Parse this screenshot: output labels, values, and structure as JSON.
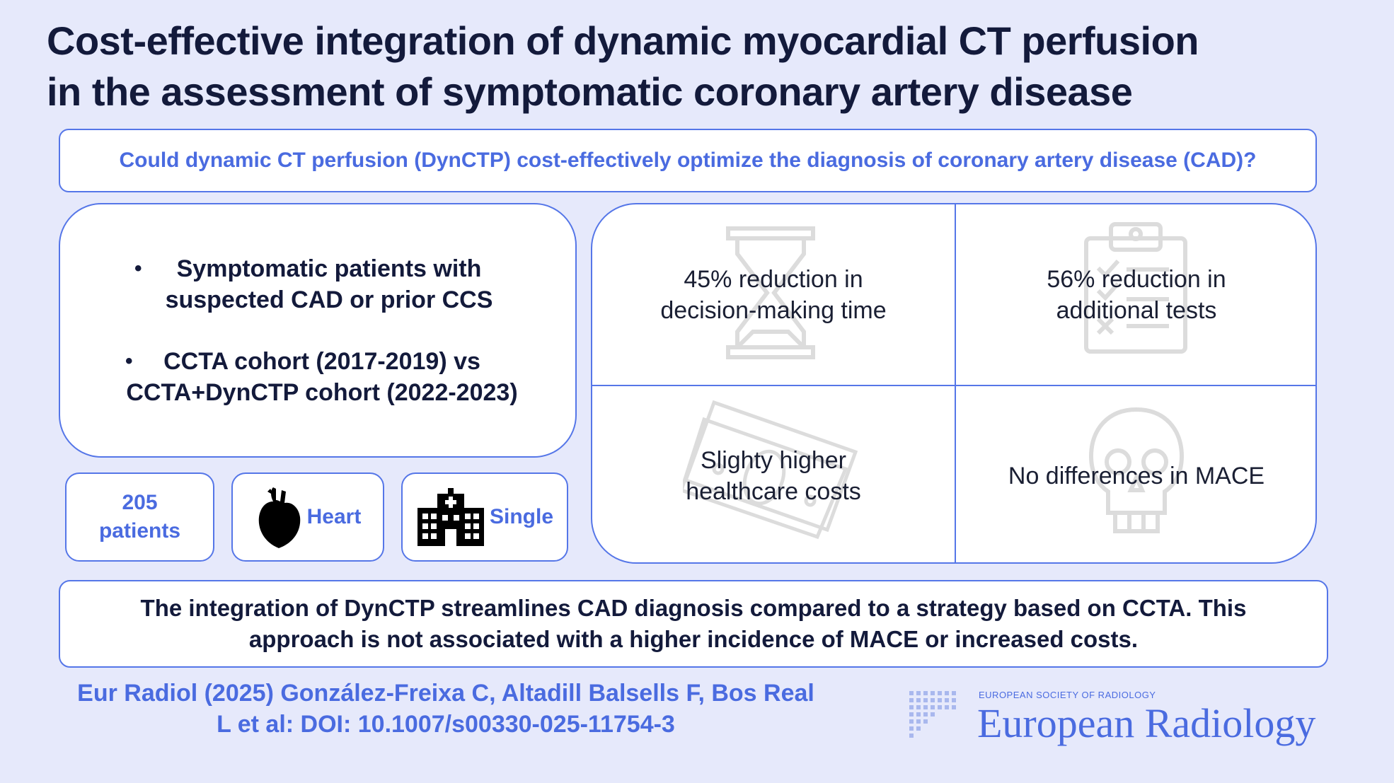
{
  "title_line1": "Cost-effective integration of dynamic myocardial CT perfusion",
  "title_line2": "in the assessment of symptomatic coronary artery disease",
  "question": "Could dynamic CT perfusion (DynCTP) cost-effectively optimize the diagnosis of coronary artery disease (CAD)?",
  "population": {
    "bullet_symbol": "•",
    "bullet1_line1": "Symptomatic patients with",
    "bullet1_line2": "suspected CAD or prior CCS",
    "bullet2_line1": "CCTA cohort (2017-2019) vs",
    "bullet2_line2": "CCTA+DynCTP cohort (2022-2023)"
  },
  "stats": {
    "patients_count": "205",
    "patients_label": "patients",
    "organ": "Heart",
    "center": "Single"
  },
  "results": {
    "r1_line1": "45% reduction in",
    "r1_line2": "decision-making time",
    "r2_line1": "56% reduction in",
    "r2_line2": "additional tests",
    "r3_line1": "Slighty higher",
    "r3_line2": "healthcare costs",
    "r4": "No differences in MACE"
  },
  "icons": {
    "heart": "heart-icon",
    "hospital": "hospital-icon",
    "hourglass": "hourglass-icon",
    "clipboard": "clipboard-icon",
    "money": "money-icon",
    "skull": "skull-icon"
  },
  "conclusion_line1": "The integration of DynCTP streamlines CAD diagnosis compared to a strategy based on CCTA. This",
  "conclusion_line2": "approach is not associated with a higher incidence of MACE or increased costs.",
  "citation_line1": "Eur Radiol (2025) González-Freixa C, Altadill Balsells F, Bos Real",
  "citation_line2": "L et al: DOI: 10.1007/s00330-025-11754-3",
  "brand": {
    "society": "EUROPEAN SOCIETY OF RADIOLOGY",
    "journal": "European Radiology"
  },
  "colors": {
    "background": "#e6e9fb",
    "accent": "#4a6be0",
    "border": "#5576e8",
    "title": "#131a3b"
  }
}
